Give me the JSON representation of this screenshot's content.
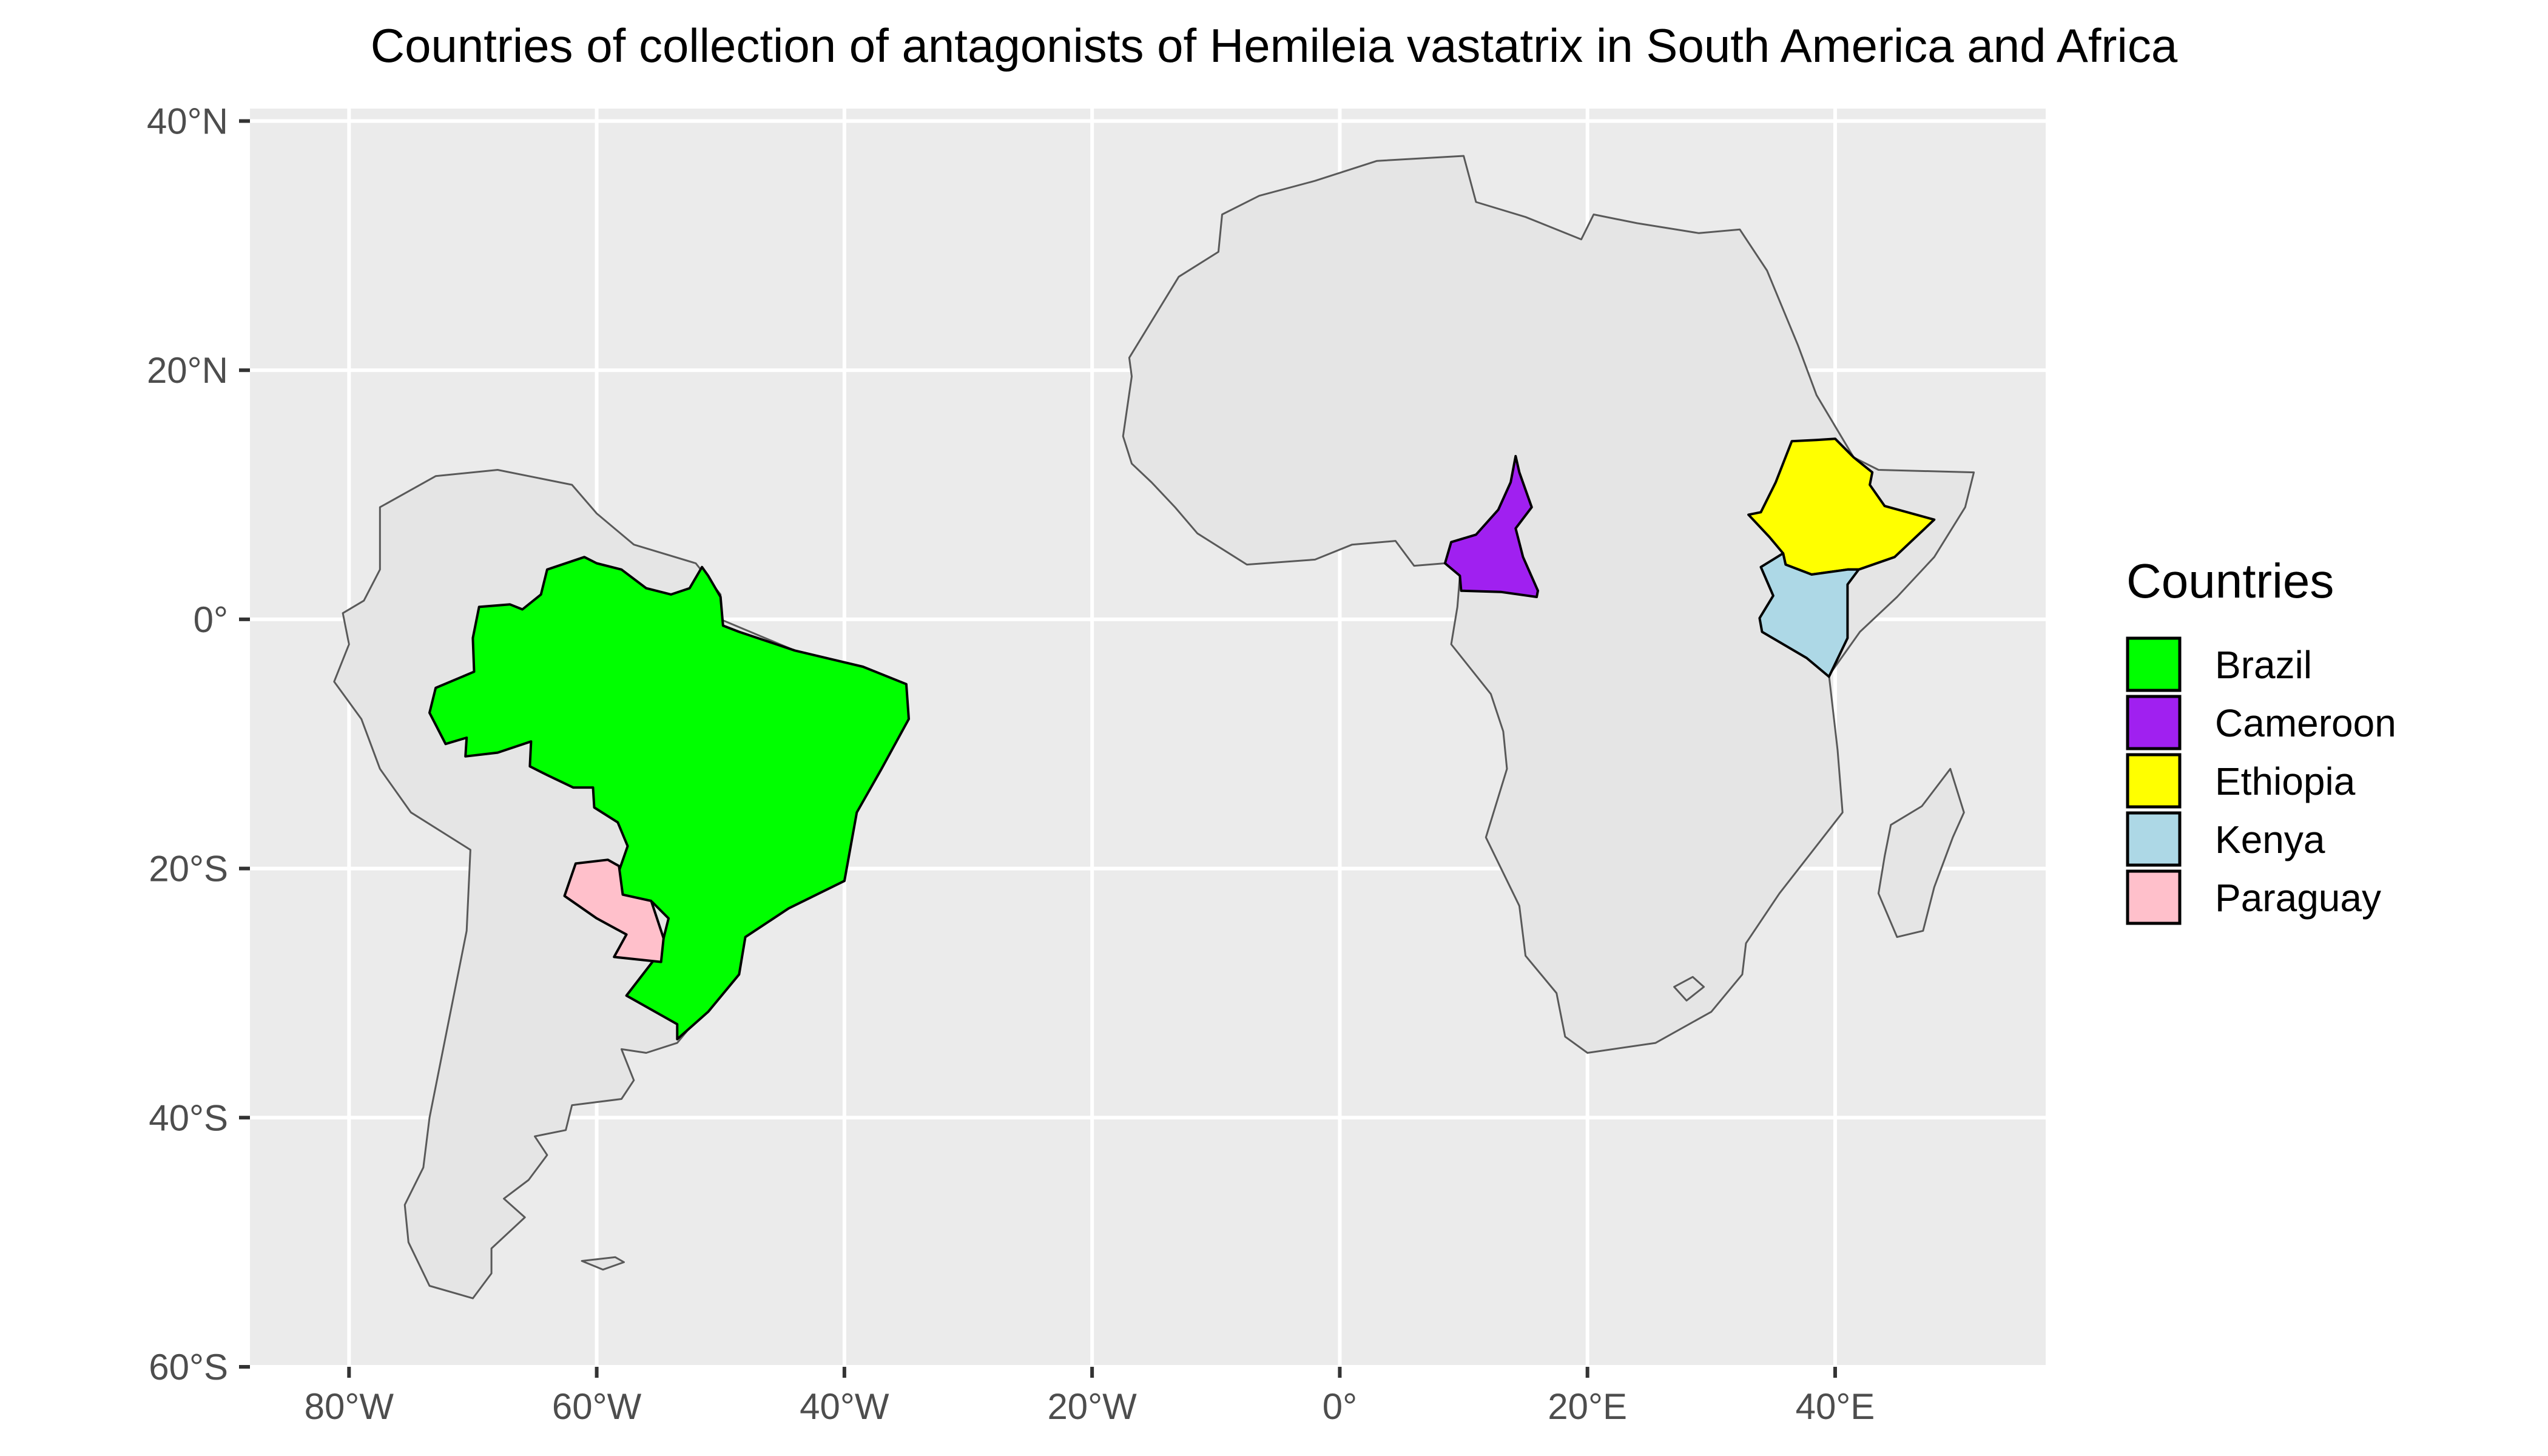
{
  "title": "Countries of collection of antagonists of Hemileia vastatrix in South America and Africa",
  "colors": {
    "panel_bg": "#EBEBEB",
    "grid": "#FFFFFF",
    "land": "#E5E5E5",
    "border": "#595959",
    "highlight_border": "#000000",
    "axis_text": "#4D4D4D",
    "tick": "#333333"
  },
  "axes": {
    "lon_range": [
      -88,
      57
    ],
    "lat_range": [
      -60,
      41
    ],
    "x_ticks": [
      {
        "value": -80,
        "label": "80°W"
      },
      {
        "value": -60,
        "label": "60°W"
      },
      {
        "value": -40,
        "label": "40°W"
      },
      {
        "value": -20,
        "label": "20°W"
      },
      {
        "value": 0,
        "label": "0°"
      },
      {
        "value": 20,
        "label": "20°E"
      },
      {
        "value": 40,
        "label": "40°E"
      }
    ],
    "y_ticks": [
      {
        "value": 40,
        "label": "40°N"
      },
      {
        "value": 20,
        "label": "20°N"
      },
      {
        "value": 0,
        "label": "0°"
      },
      {
        "value": -20,
        "label": "20°S"
      },
      {
        "value": -40,
        "label": "40°S"
      },
      {
        "value": -60,
        "label": "60°S"
      }
    ]
  },
  "legend": {
    "title": "Countries",
    "position": "right",
    "items": [
      {
        "name": "Brazil",
        "color": "#00FF00"
      },
      {
        "name": "Cameroon",
        "color": "#A020F0"
      },
      {
        "name": "Ethiopia",
        "color": "#FFFF00"
      },
      {
        "name": "Kenya",
        "color": "#ADD8E6"
      },
      {
        "name": "Paraguay",
        "color": "#FFC0CB"
      }
    ]
  },
  "regions": {
    "south_america": [
      [
        -77.5,
        9.0
      ],
      [
        -73.0,
        11.5
      ],
      [
        -68.0,
        12.0
      ],
      [
        -62.0,
        10.8
      ],
      [
        -60.0,
        8.5
      ],
      [
        -57.0,
        6.0
      ],
      [
        -52.0,
        4.5
      ],
      [
        -50.0,
        2.0
      ],
      [
        -50.0,
        0.0
      ],
      [
        -44.0,
        -2.5
      ],
      [
        -38.5,
        -3.8
      ],
      [
        -35.0,
        -5.5
      ],
      [
        -34.8,
        -8.0
      ],
      [
        -37.0,
        -12.0
      ],
      [
        -39.0,
        -15.5
      ],
      [
        -40.0,
        -21.0
      ],
      [
        -44.5,
        -23.2
      ],
      [
        -48.0,
        -25.5
      ],
      [
        -48.5,
        -28.5
      ],
      [
        -51.0,
        -31.0
      ],
      [
        -53.5,
        -34.0
      ],
      [
        -56.0,
        -34.8
      ],
      [
        -58.0,
        -34.5
      ],
      [
        -57.0,
        -37.0
      ],
      [
        -58.0,
        -38.5
      ],
      [
        -62.0,
        -39.0
      ],
      [
        -62.5,
        -41.0
      ],
      [
        -65.0,
        -41.5
      ],
      [
        -64.0,
        -43.0
      ],
      [
        -65.5,
        -45.0
      ],
      [
        -67.5,
        -46.5
      ],
      [
        -65.8,
        -48.0
      ],
      [
        -68.5,
        -50.5
      ],
      [
        -68.5,
        -52.5
      ],
      [
        -70.0,
        -54.5
      ],
      [
        -73.5,
        -53.5
      ],
      [
        -75.2,
        -50.0
      ],
      [
        -75.5,
        -47.0
      ],
      [
        -74.0,
        -44.0
      ],
      [
        -73.5,
        -40.0
      ],
      [
        -72.5,
        -35.0
      ],
      [
        -71.5,
        -30.0
      ],
      [
        -70.5,
        -25.0
      ],
      [
        -70.2,
        -18.5
      ],
      [
        -75.0,
        -15.5
      ],
      [
        -77.5,
        -12.0
      ],
      [
        -79.0,
        -8.0
      ],
      [
        -81.2,
        -5.0
      ],
      [
        -80.0,
        -2.0
      ],
      [
        -80.5,
        0.5
      ],
      [
        -78.8,
        1.5
      ],
      [
        -77.5,
        4.0
      ],
      [
        -77.5,
        6.5
      ],
      [
        -77.5,
        9.0
      ]
    ],
    "africa": [
      [
        -17.5,
        14.7
      ],
      [
        -16.8,
        19.5
      ],
      [
        -17.0,
        21.0
      ],
      [
        -13.0,
        27.5
      ],
      [
        -9.8,
        29.5
      ],
      [
        -9.5,
        32.5
      ],
      [
        -6.5,
        34.0
      ],
      [
        -2.0,
        35.2
      ],
      [
        3.0,
        36.8
      ],
      [
        10.0,
        37.2
      ],
      [
        11.0,
        33.5
      ],
      [
        15.0,
        32.3
      ],
      [
        19.5,
        30.5
      ],
      [
        20.5,
        32.5
      ],
      [
        24.0,
        31.8
      ],
      [
        29.0,
        31.0
      ],
      [
        32.3,
        31.3
      ],
      [
        34.5,
        28.0
      ],
      [
        37.0,
        22.0
      ],
      [
        38.5,
        18.0
      ],
      [
        41.5,
        13.0
      ],
      [
        43.5,
        12.0
      ],
      [
        51.2,
        11.8
      ],
      [
        50.5,
        9.0
      ],
      [
        48.0,
        5.0
      ],
      [
        45.0,
        1.8
      ],
      [
        42.0,
        -1.0
      ],
      [
        39.5,
        -4.5
      ],
      [
        40.2,
        -10.5
      ],
      [
        40.6,
        -15.5
      ],
      [
        35.5,
        -22.0
      ],
      [
        32.8,
        -26.0
      ],
      [
        32.5,
        -28.5
      ],
      [
        30.0,
        -31.5
      ],
      [
        25.5,
        -34.0
      ],
      [
        20.0,
        -34.8
      ],
      [
        18.2,
        -33.5
      ],
      [
        17.5,
        -30.0
      ],
      [
        15.0,
        -27.0
      ],
      [
        14.5,
        -23.0
      ],
      [
        11.8,
        -17.5
      ],
      [
        13.5,
        -12.0
      ],
      [
        13.2,
        -9.0
      ],
      [
        12.2,
        -6.0
      ],
      [
        9.0,
        -2.0
      ],
      [
        9.5,
        1.0
      ],
      [
        9.7,
        3.5
      ],
      [
        8.5,
        4.5
      ],
      [
        6.0,
        4.3
      ],
      [
        4.5,
        6.3
      ],
      [
        1.0,
        6.0
      ],
      [
        -2.0,
        4.8
      ],
      [
        -7.5,
        4.4
      ],
      [
        -11.5,
        6.9
      ],
      [
        -13.3,
        9.0
      ],
      [
        -15.2,
        11.0
      ],
      [
        -16.8,
        12.5
      ],
      [
        -17.5,
        14.7
      ]
    ],
    "madagascar": [
      [
        49.3,
        -12.0
      ],
      [
        50.4,
        -15.5
      ],
      [
        49.5,
        -17.5
      ],
      [
        48.0,
        -21.5
      ],
      [
        47.1,
        -25.0
      ],
      [
        45.0,
        -25.5
      ],
      [
        43.5,
        -22.0
      ],
      [
        44.0,
        -19.0
      ],
      [
        44.5,
        -16.5
      ],
      [
        47.0,
        -15.0
      ],
      [
        49.3,
        -12.0
      ]
    ],
    "falklands": [
      [
        -61.2,
        -51.5
      ],
      [
        -58.5,
        -51.2
      ],
      [
        -57.8,
        -51.6
      ],
      [
        -59.5,
        -52.2
      ],
      [
        -61.2,
        -51.5
      ]
    ],
    "lesotho": [
      [
        27.0,
        -29.5
      ],
      [
        28.5,
        -28.7
      ],
      [
        29.4,
        -29.5
      ],
      [
        28.0,
        -30.6
      ],
      [
        27.0,
        -29.5
      ]
    ],
    "brazil": [
      [
        -69.9,
        -4.2
      ],
      [
        -70.0,
        -1.5
      ],
      [
        -69.5,
        1.0
      ],
      [
        -67.0,
        1.2
      ],
      [
        -66.0,
        0.8
      ],
      [
        -64.5,
        2.0
      ],
      [
        -64.0,
        4.0
      ],
      [
        -61.0,
        5.0
      ],
      [
        -60.0,
        4.5
      ],
      [
        -58.0,
        4.0
      ],
      [
        -56.0,
        2.5
      ],
      [
        -54.0,
        2.0
      ],
      [
        -52.5,
        2.5
      ],
      [
        -51.5,
        4.2
      ],
      [
        -51.0,
        3.5
      ],
      [
        -50.0,
        1.8
      ],
      [
        -49.8,
        -0.5
      ],
      [
        -48.5,
        -1.0
      ],
      [
        -44.0,
        -2.5
      ],
      [
        -38.5,
        -3.8
      ],
      [
        -35.0,
        -5.2
      ],
      [
        -34.8,
        -8.0
      ],
      [
        -37.0,
        -12.0
      ],
      [
        -39.0,
        -15.5
      ],
      [
        -40.0,
        -21.0
      ],
      [
        -44.5,
        -23.2
      ],
      [
        -48.0,
        -25.5
      ],
      [
        -48.5,
        -28.5
      ],
      [
        -51.0,
        -31.5
      ],
      [
        -53.5,
        -33.7
      ],
      [
        -53.5,
        -32.5
      ],
      [
        -57.6,
        -30.2
      ],
      [
        -55.5,
        -27.5
      ],
      [
        -54.6,
        -25.6
      ],
      [
        -54.2,
        -24.0
      ],
      [
        -55.5,
        -22.7
      ],
      [
        -57.9,
        -22.1
      ],
      [
        -58.2,
        -20.2
      ],
      [
        -57.5,
        -18.2
      ],
      [
        -58.3,
        -16.3
      ],
      [
        -60.2,
        -15.1
      ],
      [
        -60.3,
        -13.5
      ],
      [
        -61.9,
        -13.5
      ],
      [
        -64.0,
        -12.5
      ],
      [
        -65.4,
        -11.8
      ],
      [
        -65.3,
        -9.8
      ],
      [
        -68.0,
        -10.7
      ],
      [
        -70.6,
        -11.0
      ],
      [
        -70.5,
        -9.5
      ],
      [
        -72.2,
        -10.0
      ],
      [
        -73.5,
        -7.5
      ],
      [
        -73.0,
        -5.5
      ],
      [
        -69.9,
        -4.2
      ]
    ],
    "paraguay": [
      [
        -62.6,
        -22.2
      ],
      [
        -61.7,
        -19.6
      ],
      [
        -59.1,
        -19.3
      ],
      [
        -58.2,
        -19.8
      ],
      [
        -57.9,
        -22.1
      ],
      [
        -55.6,
        -22.6
      ],
      [
        -54.6,
        -25.6
      ],
      [
        -54.8,
        -27.5
      ],
      [
        -58.6,
        -27.1
      ],
      [
        -57.6,
        -25.3
      ],
      [
        -60.0,
        -24.0
      ],
      [
        -62.6,
        -22.2
      ]
    ],
    "cameroon": [
      [
        14.2,
        13.1
      ],
      [
        14.5,
        11.8
      ],
      [
        15.5,
        9.0
      ],
      [
        14.2,
        7.3
      ],
      [
        14.8,
        5.0
      ],
      [
        16.0,
        2.3
      ],
      [
        15.9,
        1.8
      ],
      [
        13.0,
        2.2
      ],
      [
        9.8,
        2.3
      ],
      [
        9.7,
        3.5
      ],
      [
        8.5,
        4.5
      ],
      [
        9.0,
        6.2
      ],
      [
        11.0,
        6.8
      ],
      [
        12.8,
        8.8
      ],
      [
        13.8,
        11.0
      ],
      [
        14.2,
        13.1
      ]
    ],
    "ethiopia": [
      [
        33.0,
        8.4
      ],
      [
        34.0,
        8.6
      ],
      [
        35.2,
        11.0
      ],
      [
        36.5,
        14.3
      ],
      [
        38.5,
        14.4
      ],
      [
        40.0,
        14.5
      ],
      [
        41.5,
        13.0
      ],
      [
        43.0,
        11.8
      ],
      [
        42.8,
        10.8
      ],
      [
        44.0,
        9.1
      ],
      [
        48.0,
        8.0
      ],
      [
        44.8,
        5.0
      ],
      [
        41.9,
        4.0
      ],
      [
        41.0,
        4.0
      ],
      [
        38.1,
        3.6
      ],
      [
        36.0,
        4.4
      ],
      [
        35.8,
        5.3
      ],
      [
        34.7,
        6.6
      ],
      [
        33.0,
        8.4
      ]
    ],
    "kenya": [
      [
        34.0,
        4.2
      ],
      [
        35.8,
        5.3
      ],
      [
        36.0,
        4.4
      ],
      [
        38.1,
        3.6
      ],
      [
        41.0,
        4.0
      ],
      [
        41.9,
        4.0
      ],
      [
        41.0,
        2.8
      ],
      [
        41.0,
        -1.5
      ],
      [
        39.5,
        -4.6
      ],
      [
        37.7,
        -3.1
      ],
      [
        34.1,
        -1.0
      ],
      [
        33.9,
        0.1
      ],
      [
        35.0,
        1.9
      ],
      [
        34.0,
        4.2
      ]
    ]
  }
}
